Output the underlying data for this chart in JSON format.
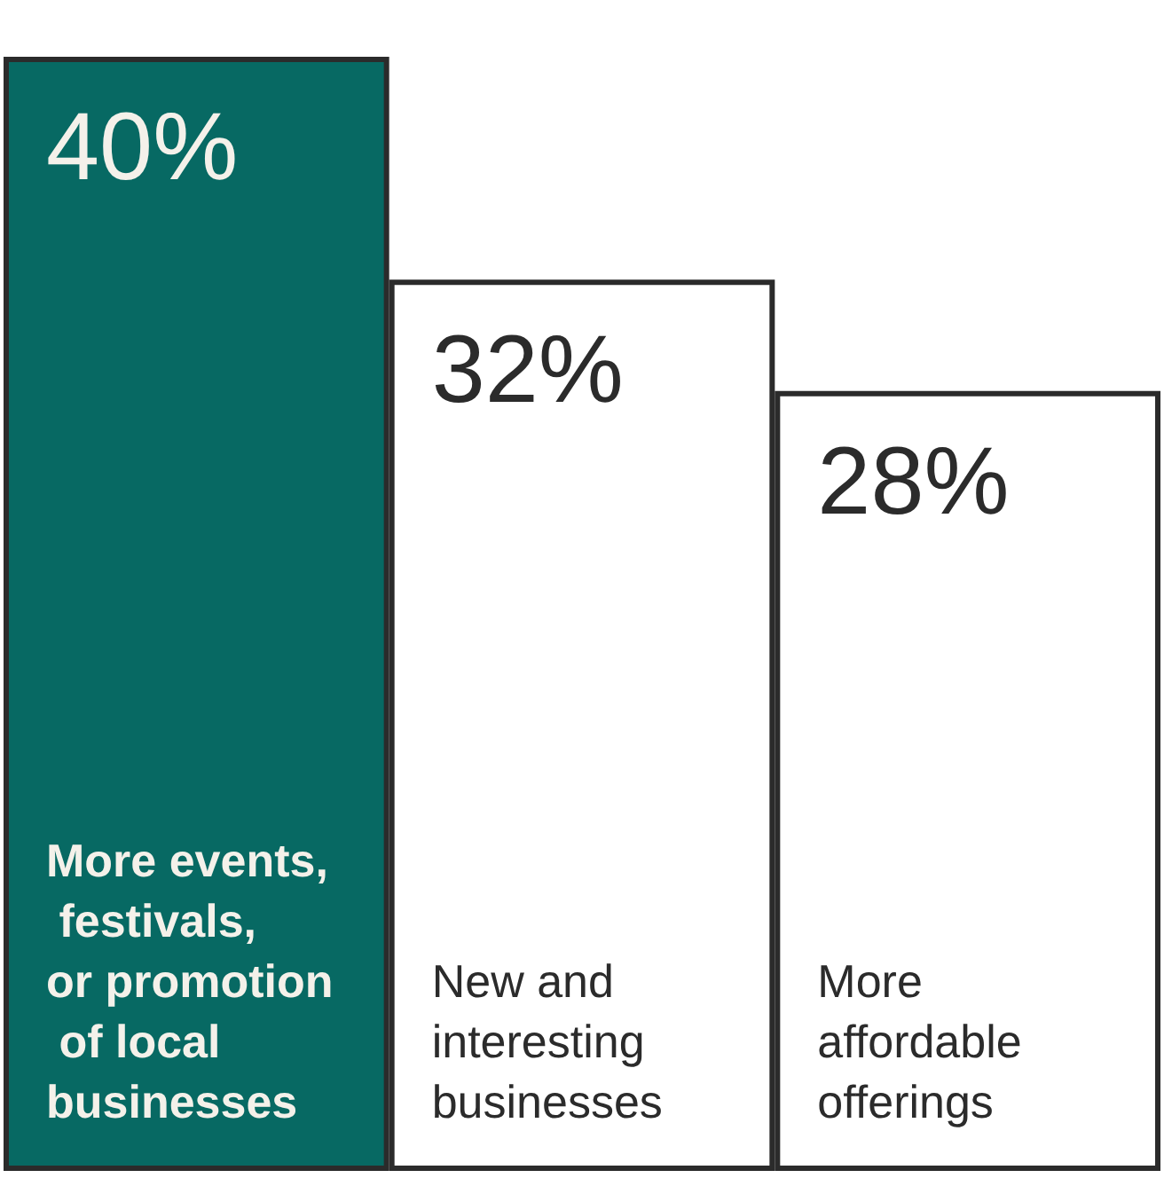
{
  "chart_data": {
    "type": "bar",
    "categories": [
      "More events, festivals, or promotion of local businesses",
      "New and interesting businesses",
      "More affordable offerings"
    ],
    "values": [
      40,
      32,
      28
    ],
    "value_labels": [
      "40%",
      "32%",
      "28%"
    ],
    "colors": [
      "#076963",
      "#ffffff",
      "#ffffff"
    ],
    "grid": false,
    "tick_labels": false
  }
}
